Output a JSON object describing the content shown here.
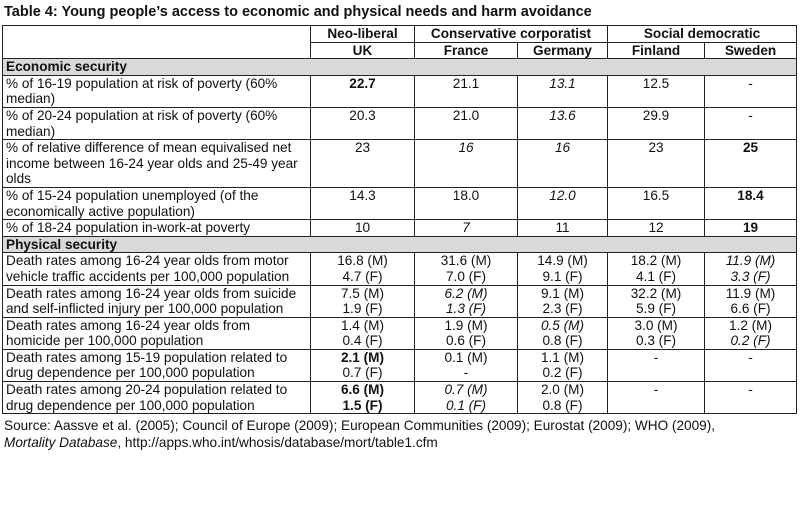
{
  "title": "Table 4: Young people’s access to economic and physical needs and harm avoidance",
  "header": {
    "groups": [
      "Neo-liberal",
      "Conservative corporatist",
      "Social democratic"
    ],
    "countries": [
      "UK",
      "France",
      "Germany",
      "Finland",
      "Sweden"
    ]
  },
  "sections": {
    "economic": "Economic security",
    "physical": "Physical security"
  },
  "rows": [
    {
      "label": "% of 16-19 population at risk of poverty (60% median)",
      "uk": "22.7",
      "fr": "21.1",
      "de": "13.1",
      "fi": "12.5",
      "se": "-"
    },
    {
      "label": "% of 20-24 population at risk of poverty (60% median)",
      "uk": "20.3",
      "fr": "21.0",
      "de": "13.6",
      "fi": "29.9",
      "se": "-"
    },
    {
      "label": "% of relative difference of mean equivalised net income between 16-24 year olds and 25-49 year olds",
      "uk": "23",
      "fr": "16",
      "de": "16",
      "fi": "23",
      "se": "25"
    },
    {
      "label": "% of 15-24 population unemployed (of the economically active population)",
      "uk": "14.3",
      "fr": "18.0",
      "de": "12.0",
      "fi": "16.5",
      "se": "18.4"
    },
    {
      "label": "% of 18-24 population in-work-at poverty",
      "uk": "10",
      "fr": "7",
      "de": "11",
      "fi": "12",
      "se": "19"
    },
    {
      "label": "Death rates among 16-24 year olds from motor vehicle traffic accidents per 100,000 population",
      "uk": [
        "16.8 (M)",
        "4.7 (F)"
      ],
      "fr": [
        "31.6 (M)",
        "7.0 (F)"
      ],
      "de": [
        "14.9 (M)",
        "9.1 (F)"
      ],
      "fi": [
        "18.2 (M)",
        "4.1 (F)"
      ],
      "se": [
        "11.9 (M)",
        "3.3 (F)"
      ]
    },
    {
      "label": "Death rates among 16-24 year olds from suicide and self-inflicted injury per 100,000 population",
      "uk": [
        "7.5 (M)",
        "1.9 (F)"
      ],
      "fr": [
        "6.2 (M)",
        "1.3 (F)"
      ],
      "de": [
        "9.1 (M)",
        "2.3 (F)"
      ],
      "fi": [
        "32.2 (M)",
        "5.9 (F)"
      ],
      "se": [
        "11.9 (M)",
        "6.6 (F)"
      ]
    },
    {
      "label": "Death rates among 16-24 year olds from homicide per 100,000 population",
      "uk": [
        "1.4 (M)",
        "0.4 (F)"
      ],
      "fr": [
        "1.9 (M)",
        "0.6 (F)"
      ],
      "de": [
        "0.5 (M)",
        "0.8 (F)"
      ],
      "fi": [
        "3.0 (M)",
        "0.3 (F)"
      ],
      "se": [
        "1.2 (M)",
        "0.2 (F)"
      ]
    },
    {
      "label": "Death rates among 15-19 population related to drug dependence per 100,000 population",
      "uk": [
        "2.1 (M)",
        "0.7 (F)"
      ],
      "fr": [
        "0.1 (M)",
        "-"
      ],
      "de": [
        "1.1 (M)",
        "0.2 (F)"
      ],
      "fi": "-",
      "se": "-"
    },
    {
      "label": "Death rates among 20-24 population related to drug dependence per 100,000 population",
      "uk": [
        "6.6 (M)",
        "1.5 (F)"
      ],
      "fr": [
        "0.7 (M)",
        "0.1 (F)"
      ],
      "de": [
        "2.0 (M)",
        "0.8 (F)"
      ],
      "fi": "-",
      "se": "-"
    }
  ],
  "source": {
    "prefix": "Source: Aassve et al. (2005); Council of Europe (2009); European Communities (2009); Eurostat (2009); WHO (2009),",
    "italic": "Mortality Database",
    "suffix": ", http://apps.who.int/whosis/database/mort/table1.cfm"
  }
}
